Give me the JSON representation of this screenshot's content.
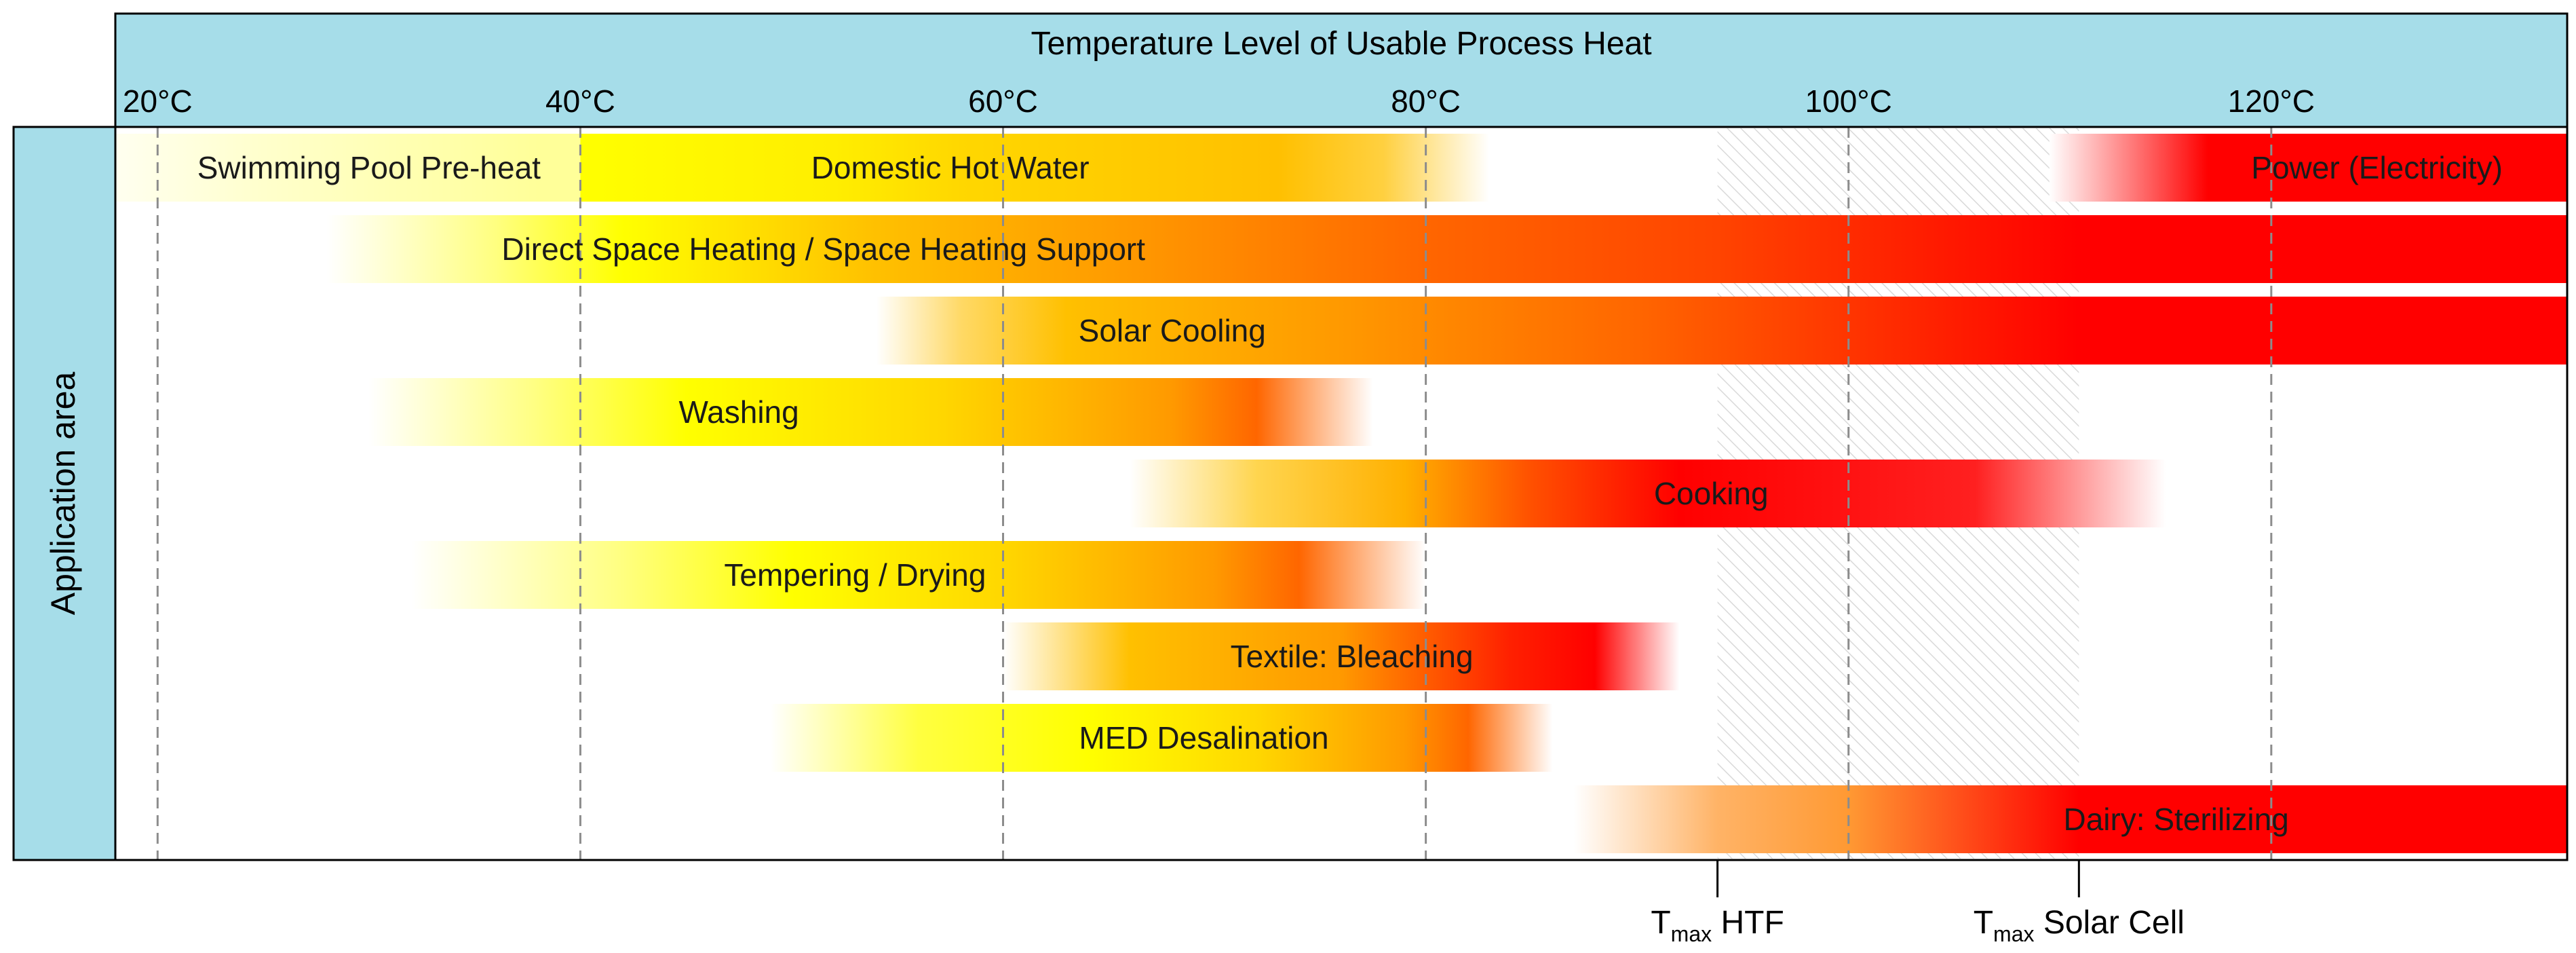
{
  "chart_data": {
    "type": "bar",
    "title": "Temperature Level of Usable Process Heat",
    "ylabel": "Application area",
    "x_unit": "°C",
    "xlim": [
      18,
      134
    ],
    "x_ticks": [
      20,
      40,
      60,
      80,
      100,
      120
    ],
    "x_tick_labels": [
      "20°C",
      "40°C",
      "60°C",
      "80°C",
      "100°C",
      "120°C"
    ],
    "grid": true,
    "colors": {
      "header_fill": "#a6dde9",
      "yellow": "#ffff00",
      "orange": "#ffc000",
      "dark_orange": "#ff6600",
      "red": "#ff0000",
      "grid": "#8c8c8c",
      "hatch": "#d9d9d9"
    },
    "limits": [
      {
        "label_main": "T",
        "label_sub": "max",
        "label_rest": " HTF",
        "x": 93.8
      },
      {
        "label_main": "T",
        "label_sub": "max",
        "label_rest": " Solar Cell",
        "x": 110.9
      }
    ],
    "hatched_range": [
      93.8,
      110.9
    ],
    "rows": [
      {
        "bars": [
          {
            "label": "Swimming Pool Pre-heat",
            "start": 18,
            "end": 40,
            "label_x": 30,
            "gradient": [
              [
                18,
                "#fffff0"
              ],
              [
                25,
                "#ffffcc"
              ],
              [
                38,
                "#ffff99"
              ],
              [
                40,
                "#ffff99"
              ]
            ]
          },
          {
            "label": "Domestic Hot Water",
            "start": 40,
            "end": 83,
            "label_x": 57.5,
            "gradient": [
              [
                40,
                "#ffff00"
              ],
              [
                52,
                "#ffee00"
              ],
              [
                58,
                "#ffd700"
              ],
              [
                73,
                "#ffc000"
              ],
              [
                78,
                "#ffd040"
              ],
              [
                83,
                "#ffffff"
              ]
            ]
          },
          {
            "label": "Power (Electricity)",
            "start": 109.5,
            "end": 134,
            "label_x": 125,
            "gradient": [
              [
                109.5,
                "#ffffff"
              ],
              [
                117,
                "#ff0000"
              ],
              [
                134,
                "#ff0000"
              ]
            ]
          }
        ]
      },
      {
        "bars": [
          {
            "label": "Direct Space Heating / Space Heating Support",
            "start": 28,
            "end": 134,
            "label_x": 51.5,
            "gradient": [
              [
                28,
                "#ffffff"
              ],
              [
                36,
                "#ffff80"
              ],
              [
                42,
                "#ffff00"
              ],
              [
                54,
                "#ffc000"
              ],
              [
                66,
                "#ff9900"
              ],
              [
                80,
                "#ff6600"
              ],
              [
                93.8,
                "#ff4400"
              ],
              [
                110.9,
                "#ff0000"
              ],
              [
                134,
                "#ff0000"
              ]
            ]
          }
        ]
      },
      {
        "bars": [
          {
            "label": "Solar Cooling",
            "start": 54,
            "end": 134,
            "label_x": 68,
            "gradient": [
              [
                54,
                "#ffffff"
              ],
              [
                58,
                "#ffd966"
              ],
              [
                63,
                "#ffc000"
              ],
              [
                76,
                "#ff9900"
              ],
              [
                90,
                "#ff6600"
              ],
              [
                110.9,
                "#ff0000"
              ],
              [
                134,
                "#ff0000"
              ]
            ]
          }
        ]
      },
      {
        "bars": [
          {
            "label": "Washing",
            "start": 30,
            "end": 77.5,
            "label_x": 47.5,
            "gradient": [
              [
                30,
                "#ffffff"
              ],
              [
                38,
                "#ffff80"
              ],
              [
                45,
                "#ffff00"
              ],
              [
                57,
                "#ffd700"
              ],
              [
                68,
                "#ff9900"
              ],
              [
                72,
                "#ff6600"
              ],
              [
                77.5,
                "#ffffff"
              ]
            ]
          }
        ]
      },
      {
        "bars": [
          {
            "label": "Cooking",
            "start": 66,
            "end": 115,
            "label_x": 93.5,
            "gradient": [
              [
                66,
                "#ffffff"
              ],
              [
                72,
                "#ffd54f"
              ],
              [
                79,
                "#ffb000"
              ],
              [
                85,
                "#ff5000"
              ],
              [
                92,
                "#ff0000"
              ],
              [
                106,
                "#ff2020"
              ],
              [
                115,
                "#ffffff"
              ]
            ]
          }
        ]
      },
      {
        "bars": [
          {
            "label": "Tempering / Drying",
            "start": 32,
            "end": 80,
            "label_x": 53,
            "gradient": [
              [
                32,
                "#ffffff"
              ],
              [
                42,
                "#ffff80"
              ],
              [
                50,
                "#ffff00"
              ],
              [
                60,
                "#ffd700"
              ],
              [
                70,
                "#ff9900"
              ],
              [
                74,
                "#ff6600"
              ],
              [
                80,
                "#ffffff"
              ]
            ]
          }
        ]
      },
      {
        "bars": [
          {
            "label": "Textile: Bleaching",
            "start": 60,
            "end": 92,
            "label_x": 76.5,
            "gradient": [
              [
                60,
                "#ffffff"
              ],
              [
                66,
                "#ffc000"
              ],
              [
                76,
                "#ff9900"
              ],
              [
                84,
                "#ff2000"
              ],
              [
                88,
                "#ff0000"
              ],
              [
                92,
                "#ffffff"
              ]
            ]
          }
        ]
      },
      {
        "bars": [
          {
            "label": "MED Desalination",
            "start": 49,
            "end": 86,
            "label_x": 69.5,
            "gradient": [
              [
                49,
                "#ffffff"
              ],
              [
                56,
                "#ffff40"
              ],
              [
                64,
                "#ffff00"
              ],
              [
                72,
                "#ffd700"
              ],
              [
                79,
                "#ff9900"
              ],
              [
                82,
                "#ff6600"
              ],
              [
                86,
                "#ffffff"
              ]
            ]
          }
        ]
      },
      {
        "bars": [
          {
            "label": "Dairy: Sterilizing",
            "start": 87,
            "end": 134,
            "label_x": 115.5,
            "gradient": [
              [
                87,
                "#ffffff"
              ],
              [
                93.8,
                "#ffb366"
              ],
              [
                100,
                "#ff9933"
              ],
              [
                110.9,
                "#ff0000"
              ],
              [
                134,
                "#ff0000"
              ]
            ]
          }
        ]
      }
    ]
  }
}
